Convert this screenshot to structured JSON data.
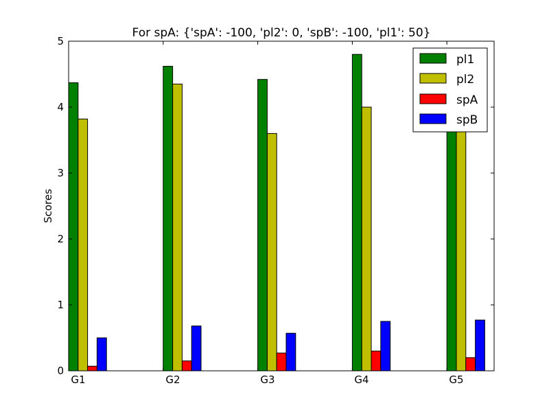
{
  "chart_data": {
    "type": "bar",
    "title": "For spA: {'spA': -100, 'pl2': 0, 'spB': -100, 'pl1': 50}",
    "xlabel": "",
    "ylabel": "Scores",
    "categories": [
      "G1",
      "G2",
      "G3",
      "G4",
      "G5"
    ],
    "ylim": [
      0,
      5
    ],
    "yticks": [
      "0",
      "1",
      "2",
      "3",
      "4",
      "5"
    ],
    "grid": false,
    "legend_position": "top-right",
    "series": [
      {
        "name": "pl1",
        "color": "#008000",
        "values": [
          4.37,
          4.62,
          4.42,
          4.8,
          4.65
        ]
      },
      {
        "name": "pl2",
        "color": "#bfbf00",
        "values": [
          3.82,
          4.35,
          3.6,
          4.0,
          3.8
        ]
      },
      {
        "name": "spA",
        "color": "#ff0000",
        "values": [
          0.07,
          0.15,
          0.27,
          0.3,
          0.2
        ]
      },
      {
        "name": "spB",
        "color": "#0000ff",
        "values": [
          0.5,
          0.68,
          0.57,
          0.75,
          0.77
        ]
      }
    ]
  }
}
